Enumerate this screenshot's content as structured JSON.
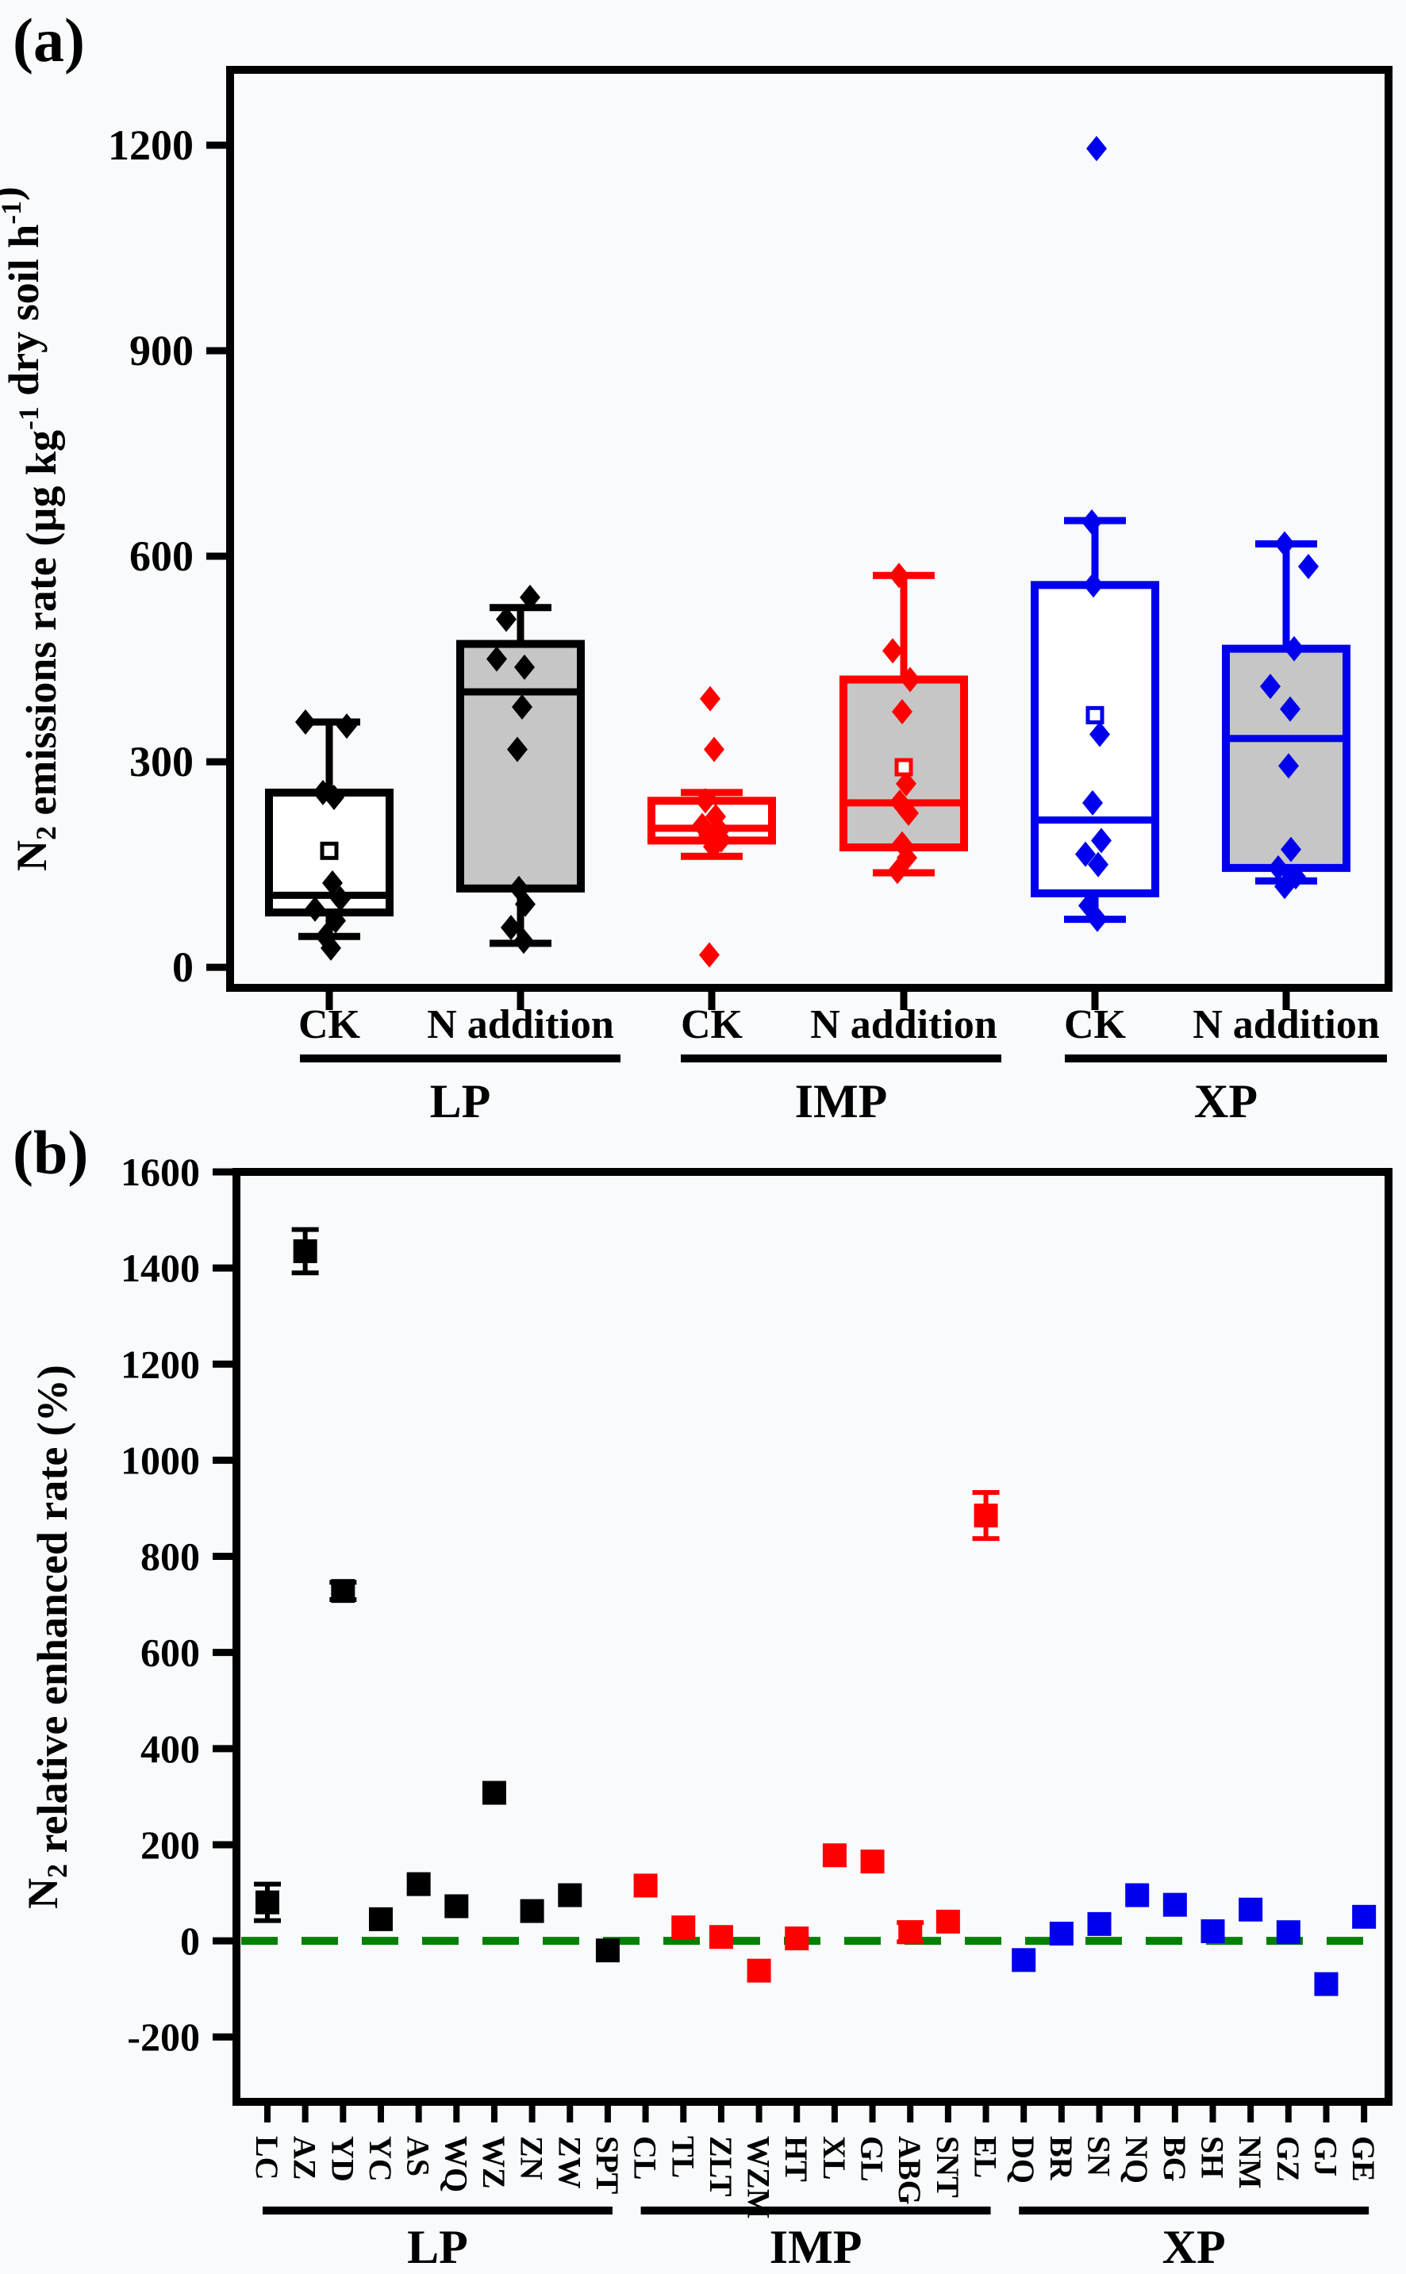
{
  "chart_data": [
    {
      "id": "a",
      "type": "box",
      "corner_label": "(a)",
      "ylabel_parts": [
        {
          "text": "N"
        },
        {
          "text": "2",
          "script": "sub"
        },
        {
          "text": " emissions rate (µg kg"
        },
        {
          "text": "-1",
          "script": "sup"
        },
        {
          "text": " dry soil h"
        },
        {
          "text": "-1",
          "script": "sup"
        },
        {
          "text": ")"
        }
      ],
      "yticks": [
        0,
        300,
        600,
        900,
        1200
      ],
      "ylim": [
        -30,
        1310
      ],
      "categories": [
        "CK",
        "N addition",
        "CK",
        "N addition",
        "CK",
        "N addition"
      ],
      "group_labels": [
        "LP",
        "IMP",
        "XP"
      ],
      "grid": false,
      "box_fill_gray": "#c6c6c6",
      "box_fill_white": "#ffffff",
      "boxes": [
        {
          "group": "LP",
          "treatment": "CK",
          "color": "#000000",
          "fill": "#ffffff",
          "whisker_low": 45,
          "q1": 80,
          "median": 105,
          "q3": 255,
          "whisker_high": 358,
          "mean": 170,
          "points": [
            {
              "dx": -30,
              "v": 358
            },
            {
              "dx": 22,
              "v": 352
            },
            {
              "dx": -8,
              "v": 255
            },
            {
              "dx": 6,
              "v": 248
            },
            {
              "dx": 4,
              "v": 123
            },
            {
              "dx": 14,
              "v": 100
            },
            {
              "dx": -18,
              "v": 85
            },
            {
              "dx": 8,
              "v": 68
            },
            {
              "dx": -5,
              "v": 45
            },
            {
              "dx": 2,
              "v": 28
            }
          ]
        },
        {
          "group": "LP",
          "treatment": "N addition",
          "color": "#000000",
          "fill": "#c6c6c6",
          "whisker_low": 35,
          "q1": 115,
          "median": 402,
          "q3": 472,
          "whisker_high": 525,
          "mean": null,
          "points": [
            {
              "dx": 12,
              "v": 540
            },
            {
              "dx": -18,
              "v": 508
            },
            {
              "dx": -30,
              "v": 450
            },
            {
              "dx": 5,
              "v": 438
            },
            {
              "dx": 2,
              "v": 380
            },
            {
              "dx": -4,
              "v": 318
            },
            {
              "dx": -2,
              "v": 115
            },
            {
              "dx": 6,
              "v": 92
            },
            {
              "dx": -12,
              "v": 58
            },
            {
              "dx": 4,
              "v": 38
            }
          ]
        },
        {
          "group": "IMP",
          "treatment": "CK",
          "color": "#ff0000",
          "fill": "#ffffff",
          "whisker_low": 162,
          "q1": 185,
          "median": 203,
          "q3": 243,
          "whisker_high": 255,
          "mean": null,
          "points": [
            {
              "dx": -2,
              "v": 392
            },
            {
              "dx": 3,
              "v": 318
            },
            {
              "dx": -8,
              "v": 243
            },
            {
              "dx": 5,
              "v": 220
            },
            {
              "dx": -12,
              "v": 207
            },
            {
              "dx": 10,
              "v": 200
            },
            {
              "dx": -4,
              "v": 193
            },
            {
              "dx": 12,
              "v": 186
            },
            {
              "dx": 2,
              "v": 176
            },
            {
              "dx": -3,
              "v": 18
            }
          ]
        },
        {
          "group": "IMP",
          "treatment": "N addition",
          "color": "#ff0000",
          "fill": "#c6c6c6",
          "whisker_low": 138,
          "q1": 175,
          "median": 240,
          "q3": 420,
          "whisker_high": 572,
          "mean": 292,
          "points": [
            {
              "dx": -6,
              "v": 572
            },
            {
              "dx": -14,
              "v": 462
            },
            {
              "dx": 8,
              "v": 420
            },
            {
              "dx": -2,
              "v": 373
            },
            {
              "dx": 3,
              "v": 268
            },
            {
              "dx": -5,
              "v": 241
            },
            {
              "dx": 6,
              "v": 225
            },
            {
              "dx": -2,
              "v": 180
            },
            {
              "dx": 4,
              "v": 160
            },
            {
              "dx": -8,
              "v": 140
            }
          ]
        },
        {
          "group": "XP",
          "treatment": "CK",
          "color": "#0000ee",
          "fill": "#ffffff",
          "whisker_low": 70,
          "q1": 108,
          "median": 215,
          "q3": 558,
          "whisker_high": 652,
          "mean": 368,
          "points": [
            {
              "dx": 2,
              "v": 1195
            },
            {
              "dx": -4,
              "v": 650
            },
            {
              "dx": -2,
              "v": 558
            },
            {
              "dx": 6,
              "v": 340
            },
            {
              "dx": -3,
              "v": 240
            },
            {
              "dx": 8,
              "v": 185
            },
            {
              "dx": -12,
              "v": 165
            },
            {
              "dx": 4,
              "v": 150
            },
            {
              "dx": -8,
              "v": 90
            },
            {
              "dx": 3,
              "v": 70
            }
          ]
        },
        {
          "group": "XP",
          "treatment": "N addition",
          "color": "#0000ee",
          "fill": "#c6c6c6",
          "whisker_low": 126,
          "q1": 145,
          "median": 334,
          "q3": 465,
          "whisker_high": 618,
          "mean": null,
          "points": [
            {
              "dx": -2,
              "v": 618
            },
            {
              "dx": 28,
              "v": 585
            },
            {
              "dx": 10,
              "v": 465
            },
            {
              "dx": -20,
              "v": 410
            },
            {
              "dx": 5,
              "v": 377
            },
            {
              "dx": 3,
              "v": 294
            },
            {
              "dx": 6,
              "v": 172
            },
            {
              "dx": -10,
              "v": 145
            },
            {
              "dx": 12,
              "v": 132
            },
            {
              "dx": -2,
              "v": 118
            }
          ]
        }
      ]
    },
    {
      "id": "b",
      "type": "scatter",
      "corner_label": "(b)",
      "ylabel_parts": [
        {
          "text": "N"
        },
        {
          "text": "2",
          "script": "sub"
        },
        {
          "text": " relative enhanced rate (%)"
        }
      ],
      "yticks": [
        -200,
        0,
        200,
        400,
        600,
        800,
        1000,
        1200,
        1400,
        1600
      ],
      "ylim": [
        -335,
        1600
      ],
      "grid": false,
      "zero_line": {
        "value": 0,
        "color": "#008000",
        "style": "dashed"
      },
      "groups": [
        {
          "name": "LP",
          "color": "#000000",
          "sites": [
            {
              "site": "LC",
              "value": 80,
              "err": 38
            },
            {
              "site": "AZ",
              "value": 1435,
              "err": 45
            },
            {
              "site": "YD",
              "value": 728,
              "err": 18
            },
            {
              "site": "YC",
              "value": 45,
              "err": 0
            },
            {
              "site": "AS",
              "value": 118,
              "err": 0
            },
            {
              "site": "WQ",
              "value": 72,
              "err": 0
            },
            {
              "site": "WZ",
              "value": 308,
              "err": 0
            },
            {
              "site": "ZN",
              "value": 62,
              "err": 0
            },
            {
              "site": "ZW",
              "value": 95,
              "err": 0
            },
            {
              "site": "SPT",
              "value": -20,
              "err": 0
            }
          ]
        },
        {
          "name": "IMP",
          "color": "#ff0000",
          "sites": [
            {
              "site": "CL",
              "value": 115,
              "err": 0
            },
            {
              "site": "TL",
              "value": 28,
              "err": 0
            },
            {
              "site": "ZLT",
              "value": 8,
              "err": 0
            },
            {
              "site": "WZM",
              "value": -62,
              "err": 0
            },
            {
              "site": "HT",
              "value": 5,
              "err": 0
            },
            {
              "site": "XL",
              "value": 178,
              "err": 0
            },
            {
              "site": "GL",
              "value": 165,
              "err": 0
            },
            {
              "site": "ABG",
              "value": 18,
              "err": 20
            },
            {
              "site": "SNT",
              "value": 40,
              "err": 0
            },
            {
              "site": "EL",
              "value": 885,
              "err": 48
            }
          ]
        },
        {
          "name": "XP",
          "color": "#0000ee",
          "sites": [
            {
              "site": "DQ",
              "value": -40,
              "err": 0
            },
            {
              "site": "BR",
              "value": 15,
              "err": 0
            },
            {
              "site": "SN",
              "value": 35,
              "err": 0
            },
            {
              "site": "NQ",
              "value": 95,
              "err": 0
            },
            {
              "site": "BG",
              "value": 75,
              "err": 0
            },
            {
              "site": "SH",
              "value": 20,
              "err": 0
            },
            {
              "site": "NM",
              "value": 65,
              "err": 0
            },
            {
              "site": "GZ",
              "value": 18,
              "err": 0
            },
            {
              "site": "GJ",
              "value": -90,
              "err": 0
            },
            {
              "site": "GE",
              "value": 50,
              "err": 0
            }
          ]
        }
      ]
    }
  ]
}
